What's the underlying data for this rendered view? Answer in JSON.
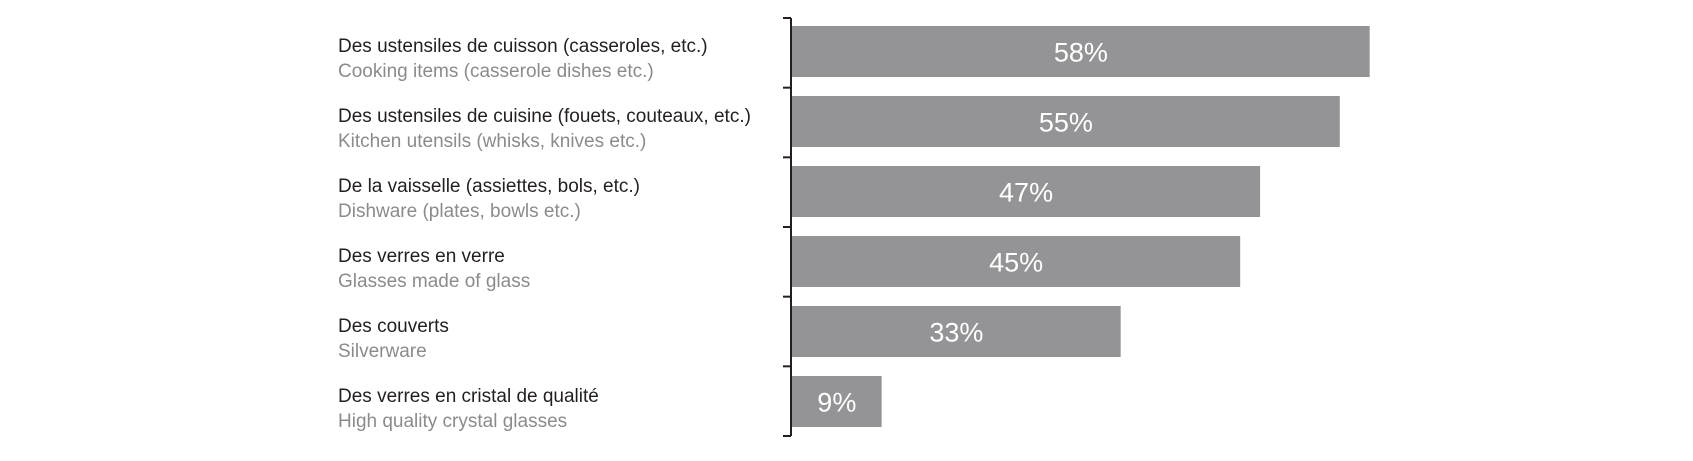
{
  "chart_data": {
    "type": "bar",
    "orientation": "horizontal",
    "categories": [
      "Des ustensiles de cuisson (casseroles, etc.)",
      "Des ustensiles de cuisine (fouets, couteaux, etc.)",
      "De la vaisselle (assiettes, bols, etc.)",
      "Des verres en verre",
      "Des couverts",
      "Des verres en cristal de qualité"
    ],
    "categories_en": [
      "Cooking items (casserole dishes etc.)",
      "Kitchen utensils (whisks, knives etc.)",
      "Dishware (plates, bowls etc.)",
      "Glasses made of glass",
      "Silverware",
      "High quality crystal glasses"
    ],
    "values": [
      58,
      55,
      47,
      45,
      33,
      9
    ],
    "value_labels": [
      "58%",
      "55%",
      "47%",
      "45%",
      "33%",
      "9%"
    ],
    "xlim": [
      0,
      100
    ],
    "grid": false,
    "legend": "none",
    "colors": {
      "bar": "#949497",
      "label_fr": "#231f20",
      "label_en": "#8b8b8e",
      "value_text": "#ffffff"
    }
  }
}
